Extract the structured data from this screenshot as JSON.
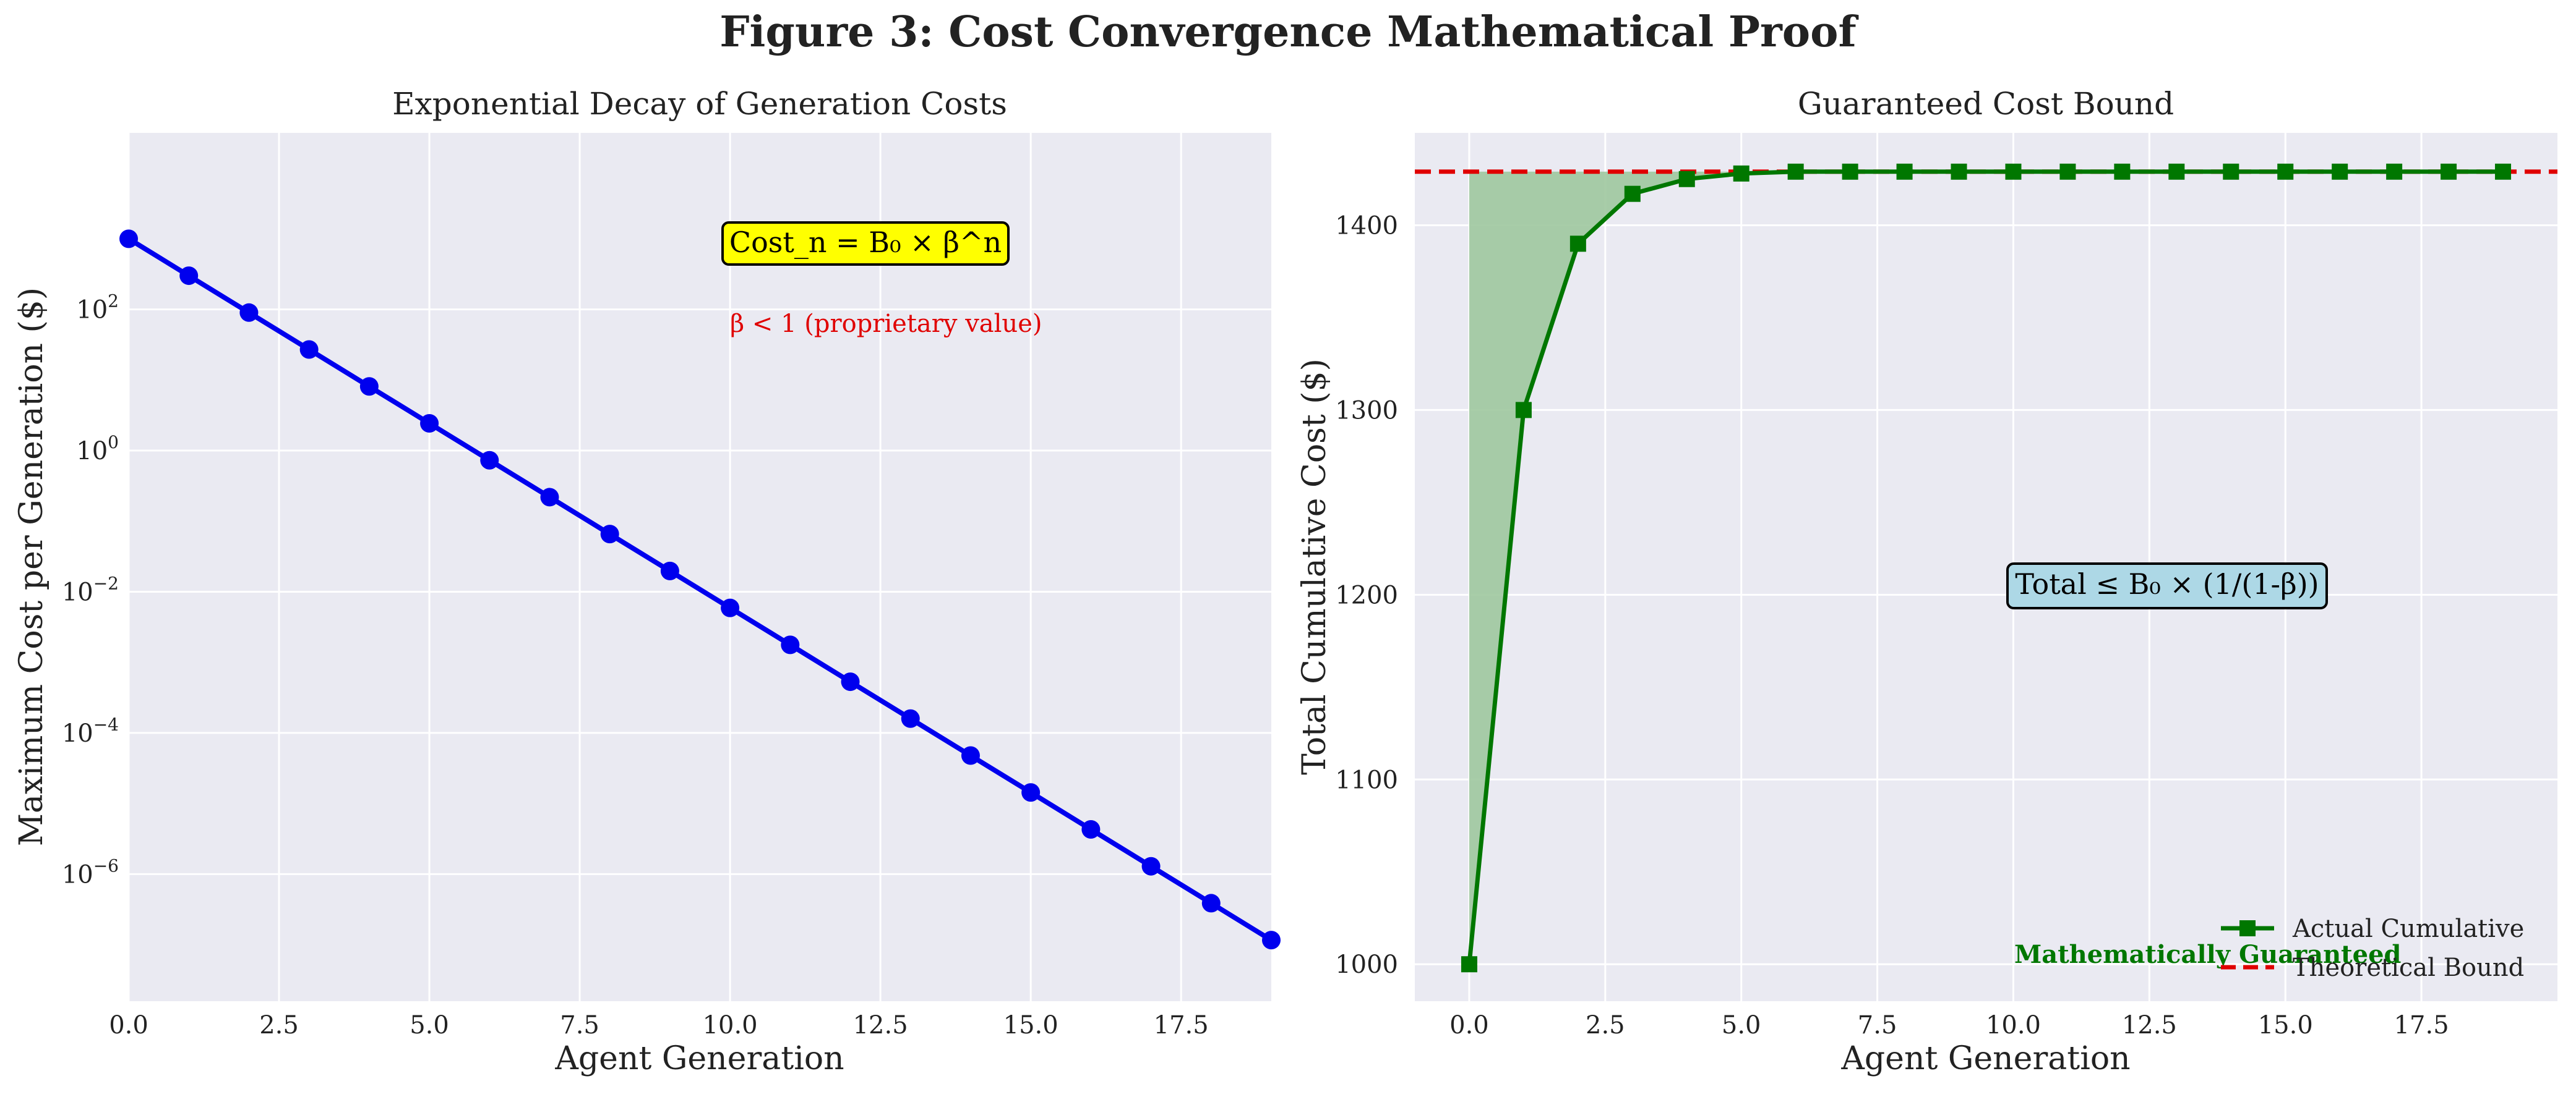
{
  "figure": {
    "title": "Figure 3: Cost Convergence Mathematical Proof"
  },
  "chart_data": [
    {
      "type": "line",
      "title": "Exponential Decay of Generation Costs",
      "xlabel": "Agent Generation",
      "ylabel": "Maximum Cost per Generation ($)",
      "yscale": "log",
      "xlim": [
        0,
        19
      ],
      "ylim_log10": [
        -7.8,
        4.5
      ],
      "x_ticks": [
        0,
        2.5,
        5,
        7.5,
        10,
        12.5,
        15,
        17.5
      ],
      "x_tick_labels": [
        "0.0",
        "2.5",
        "5.0",
        "7.5",
        "10.0",
        "12.5",
        "15.0",
        "17.5"
      ],
      "y_ticks": [
        {
          "base": "10",
          "exp": "2",
          "log10": 2
        },
        {
          "base": "10",
          "exp": "0",
          "log10": 0
        },
        {
          "base": "10",
          "exp": "−2",
          "log10": -2
        },
        {
          "base": "10",
          "exp": "−4",
          "log10": -4
        },
        {
          "base": "10",
          "exp": "−6",
          "log10": -6
        }
      ],
      "grid": true,
      "series": [
        {
          "color": "#0000ee",
          "marker": "circle",
          "x": [
            0,
            1,
            2,
            3,
            4,
            5,
            6,
            7,
            8,
            9,
            10,
            11,
            12,
            13,
            14,
            15,
            16,
            17,
            18,
            19
          ],
          "values": [
            1000,
            300,
            90,
            27,
            8.1,
            2.43,
            0.729,
            0.2187,
            0.06561,
            0.019683,
            0.0059049,
            0.00177147,
            0.000531441,
            0.000159432,
            4.78297e-05,
            1.43489e-05,
            4.30467e-06,
            1.2914e-06,
            3.8742e-07,
            1.16226e-07
          ]
        }
      ],
      "annotations": [
        {
          "text": "Cost_n = B₀ × β^n",
          "style": "yellow-box"
        },
        {
          "text": "β < 1 (proprietary value)",
          "color": "#e00000"
        }
      ]
    },
    {
      "type": "line",
      "title": "Guaranteed Cost Bound",
      "xlabel": "Agent Generation",
      "ylabel": "Total Cumulative Cost ($)",
      "xlim": [
        -1,
        20
      ],
      "ylim": [
        980,
        1450
      ],
      "x_ticks": [
        0,
        2.5,
        5,
        7.5,
        10,
        12.5,
        15,
        17.5
      ],
      "x_tick_labels": [
        "0.0",
        "2.5",
        "5.0",
        "7.5",
        "10.0",
        "12.5",
        "15.0",
        "17.5"
      ],
      "y_ticks": [
        1000,
        1100,
        1200,
        1300,
        1400
      ],
      "grid": true,
      "series": [
        {
          "name": "Actual Cumulative",
          "color": "#007700",
          "marker": "square",
          "x": [
            0,
            1,
            2,
            3,
            4,
            5,
            6,
            7,
            8,
            9,
            10,
            11,
            12,
            13,
            14,
            15,
            16,
            17,
            18,
            19
          ],
          "values": [
            1000,
            1300,
            1390,
            1417,
            1425,
            1428,
            1429,
            1429,
            1429,
            1429,
            1429,
            1429,
            1429,
            1429,
            1429,
            1429,
            1429,
            1429,
            1429,
            1429
          ]
        },
        {
          "name": "Theoretical Bound",
          "color": "#e00000",
          "style": "dashed",
          "value": 1429
        }
      ],
      "fill_color": "#9ec89e",
      "legend": "bottom-right",
      "annotations": [
        {
          "text": "Total ≤ B₀ × (1/(1-β))",
          "style": "blue-box"
        },
        {
          "text": "Mathematically Guaranteed",
          "color": "#007700"
        }
      ]
    }
  ]
}
